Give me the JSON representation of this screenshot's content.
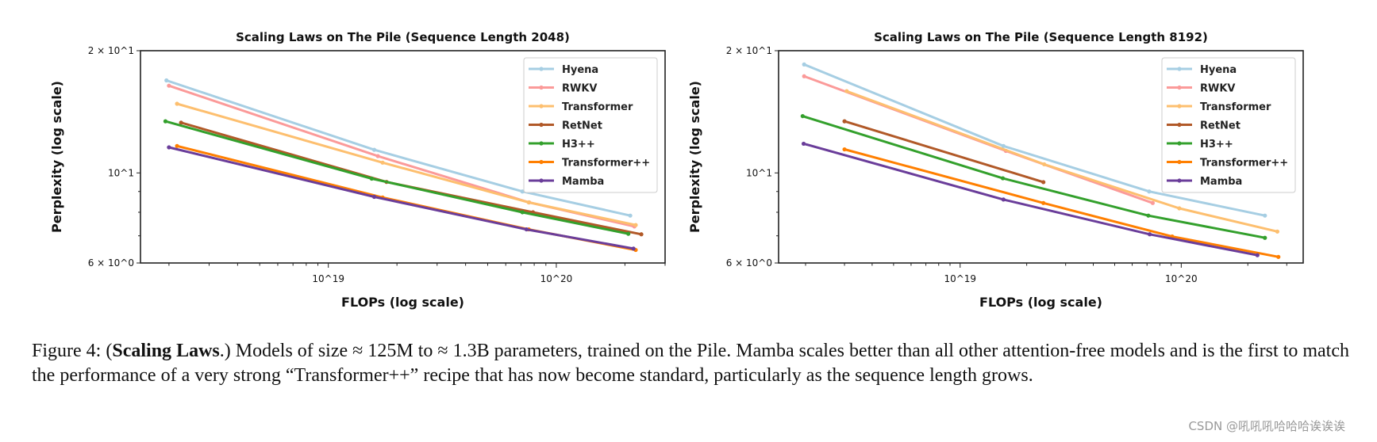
{
  "chart_data": [
    {
      "type": "line",
      "title": "Scaling Laws on The Pile (Sequence Length 2048)",
      "xlabel": "FLOPs (log scale)",
      "ylabel": "Perplexity (log scale)",
      "xscale": "log",
      "yscale": "log",
      "xlim": [
        1.5e+18,
        3e+20
      ],
      "ylim": [
        6,
        20
      ],
      "xticks": [
        {
          "value": 1e+19,
          "label": "10^19"
        },
        {
          "value": 1e+20,
          "label": "10^20"
        }
      ],
      "yticks": [
        {
          "value": 20,
          "label": "2 × 10^1"
        },
        {
          "value": 10,
          "label": "10^1"
        },
        {
          "value": 6,
          "label": "6 × 10^0"
        }
      ],
      "legend": "top-right",
      "grid": false,
      "series": [
        {
          "name": "Hyena",
          "color": "#a6cee3",
          "x": [
            1.95e+18,
            1.59e+19,
            7.1e+19,
            2.11e+20
          ],
          "y": [
            16.9,
            11.4,
            9.0,
            7.85
          ]
        },
        {
          "name": "RWKV",
          "color": "#fb9a99",
          "x": [
            2e+18,
            1.65e+19,
            7.6e+19,
            2.2e+20
          ],
          "y": [
            16.4,
            11.0,
            8.46,
            7.38
          ]
        },
        {
          "name": "Transformer",
          "color": "#fdbf6f",
          "x": [
            2.17e+18,
            1.73e+19,
            7.57e+19,
            2.23e+20
          ],
          "y": [
            14.8,
            10.6,
            8.46,
            7.44
          ]
        },
        {
          "name": "RetNet",
          "color": "#b15928",
          "x": [
            2.26e+18,
            1.8e+19,
            7.9e+19,
            2.36e+20
          ],
          "y": [
            13.3,
            9.5,
            8.0,
            7.06
          ]
        },
        {
          "name": "H3++",
          "color": "#33a02c",
          "x": [
            1.93e+18,
            1.55e+19,
            7.1e+19,
            2.07e+20
          ],
          "y": [
            13.4,
            9.68,
            8.0,
            7.08
          ]
        },
        {
          "name": "Transformer++",
          "color": "#ff7f00",
          "x": [
            2.17e+18,
            1.73e+19,
            7.57e+19,
            2.23e+20
          ],
          "y": [
            11.65,
            8.7,
            7.26,
            6.46
          ]
        },
        {
          "name": "Mamba",
          "color": "#6a3d9a",
          "x": [
            2e+18,
            1.59e+19,
            7.4e+19,
            2.18e+20
          ],
          "y": [
            11.56,
            8.73,
            7.26,
            6.51
          ]
        }
      ]
    },
    {
      "type": "line",
      "title": "Scaling Laws on The Pile (Sequence Length 8192)",
      "xlabel": "FLOPs (log scale)",
      "ylabel": "Perplexity (log scale)",
      "xscale": "log",
      "yscale": "log",
      "xlim": [
        1.51e+18,
        3.56e+20
      ],
      "ylim": [
        6,
        20
      ],
      "xticks": [
        {
          "value": 1e+19,
          "label": "10^19"
        },
        {
          "value": 1e+20,
          "label": "10^20"
        }
      ],
      "yticks": [
        {
          "value": 20,
          "label": "2 × 10^1"
        },
        {
          "value": 10,
          "label": "10^1"
        },
        {
          "value": 6,
          "label": "6 × 10^0"
        }
      ],
      "legend": "top-right",
      "grid": false,
      "series": [
        {
          "name": "Hyena",
          "color": "#a6cee3",
          "x": [
            1.97e+18,
            1.57e+19,
            7.16e+19,
            2.39e+20
          ],
          "y": [
            18.5,
            11.65,
            9.0,
            7.85
          ]
        },
        {
          "name": "RWKV",
          "color": "#fb9a99",
          "x": [
            1.97e+18,
            1.61e+19,
            7.43e+19
          ],
          "y": [
            17.3,
            11.33,
            8.43
          ]
        },
        {
          "name": "Transformer",
          "color": "#fdbf6f",
          "x": [
            3.07e+18,
            2.4e+19,
            9.8e+19,
            2.72e+20
          ],
          "y": [
            15.9,
            10.5,
            8.18,
            7.17
          ]
        },
        {
          "name": "RetNet",
          "color": "#b15928",
          "x": [
            3e+18,
            2.38e+19
          ],
          "y": [
            13.4,
            9.49
          ]
        },
        {
          "name": "H3++",
          "color": "#33a02c",
          "x": [
            1.94e+18,
            1.56e+19,
            7.1e+19,
            2.39e+20
          ],
          "y": [
            13.8,
            9.7,
            7.85,
            6.92
          ]
        },
        {
          "name": "Transformer++",
          "color": "#ff7f00",
          "x": [
            3e+18,
            2.38e+19,
            9.1e+19,
            2.75e+20
          ],
          "y": [
            11.43,
            8.43,
            6.97,
            6.21
          ]
        },
        {
          "name": "Mamba",
          "color": "#6a3d9a",
          "x": [
            1.96e+18,
            1.57e+19,
            7.2e+19,
            2.21e+20
          ],
          "y": [
            11.8,
            8.6,
            7.06,
            6.27
          ]
        }
      ]
    }
  ],
  "caption": {
    "label": "Figure 4: (",
    "bold": "Scaling Laws",
    "text": ".) Models of size ≈ 125M to ≈ 1.3B parameters, trained on the Pile. Mamba scales better than all other attention-free models and is the first to match the performance of a very strong “Transformer++” recipe that has now become standard, particularly as the sequence length grows."
  },
  "watermark": "CSDN @吼吼吼哈哈哈诶诶诶"
}
